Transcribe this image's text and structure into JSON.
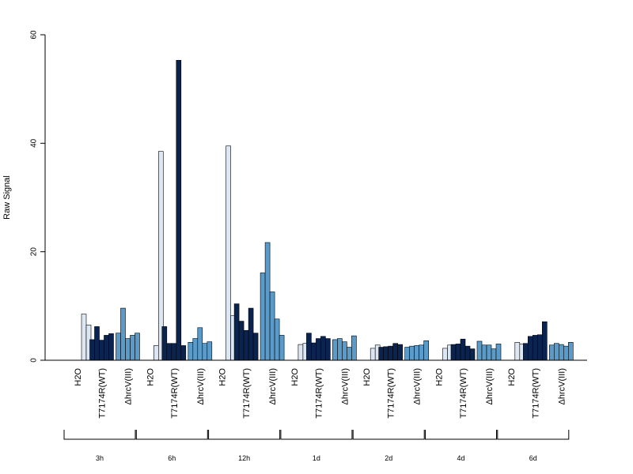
{
  "chart_data": {
    "type": "bar",
    "title": "",
    "xlabel": "",
    "ylabel": "Raw Signal",
    "ylim": [
      0,
      60
    ],
    "yticks": [
      0,
      20,
      40,
      60
    ],
    "grid": false,
    "conditions": [
      "H2O",
      "T7174R(WT)",
      "ΔhrcV(III)"
    ],
    "condition_colors": [
      "#DCE7F3",
      "#0B234F",
      "#5B9BC9"
    ],
    "groups": [
      {
        "time": "3h",
        "series": [
          {
            "condition": "H2O",
            "values": [
              0,
              8.5,
              6.5
            ]
          },
          {
            "condition": "T7174R(WT)",
            "values": [
              3.8,
              6.2,
              3.7,
              4.6,
              4.9
            ]
          },
          {
            "condition": "ΔhrcV(III)",
            "values": [
              5.0,
              9.6,
              4.0,
              4.6,
              5.0
            ]
          }
        ]
      },
      {
        "time": "6h",
        "series": [
          {
            "condition": "H2O",
            "values": [
              0,
              2.7,
              38.5
            ]
          },
          {
            "condition": "T7174R(WT)",
            "values": [
              6.2,
              3.1,
              3.1,
              55.3,
              2.7
            ]
          },
          {
            "condition": "ΔhrcV(III)",
            "values": [
              3.3,
              4.0,
              6.0,
              3.1,
              3.4
            ]
          }
        ]
      },
      {
        "time": "12h",
        "series": [
          {
            "condition": "H2O",
            "values": [
              0,
              39.5,
              8.2
            ]
          },
          {
            "condition": "T7174R(WT)",
            "values": [
              10.4,
              7.2,
              5.5,
              9.6,
              5.0
            ]
          },
          {
            "condition": "ΔhrcV(III)",
            "values": [
              16.1,
              21.7,
              12.6,
              7.6,
              4.6
            ]
          }
        ]
      },
      {
        "time": "1d",
        "series": [
          {
            "condition": "H2O",
            "values": [
              0,
              2.9,
              3.1
            ]
          },
          {
            "condition": "T7174R(WT)",
            "values": [
              5.0,
              3.2,
              4.0,
              4.4,
              4.0
            ]
          },
          {
            "condition": "ΔhrcV(III)",
            "values": [
              3.8,
              4.0,
              3.4,
              2.4,
              4.5
            ]
          }
        ]
      },
      {
        "time": "2d",
        "series": [
          {
            "condition": "H2O",
            "values": [
              0,
              2.2,
              2.8
            ]
          },
          {
            "condition": "T7174R(WT)",
            "values": [
              2.4,
              2.5,
              2.6,
              3.1,
              2.9
            ]
          },
          {
            "condition": "ΔhrcV(III)",
            "values": [
              2.4,
              2.6,
              2.7,
              2.8,
              3.6
            ]
          }
        ]
      },
      {
        "time": "4d",
        "series": [
          {
            "condition": "H2O",
            "values": [
              0,
              2.2,
              2.8
            ]
          },
          {
            "condition": "T7174R(WT)",
            "values": [
              2.9,
              3.0,
              3.9,
              2.6,
              2.1
            ]
          },
          {
            "condition": "ΔhrcV(III)",
            "values": [
              3.5,
              2.8,
              2.8,
              2.1,
              3.0
            ]
          }
        ]
      },
      {
        "time": "6d",
        "series": [
          {
            "condition": "H2O",
            "values": [
              0,
              3.3,
              3.0
            ]
          },
          {
            "condition": "T7174R(WT)",
            "values": [
              3.1,
              4.4,
              4.6,
              4.7,
              7.1
            ]
          },
          {
            "condition": "ΔhrcV(III)",
            "values": [
              2.8,
              3.1,
              2.9,
              2.6,
              3.3
            ]
          }
        ]
      }
    ]
  }
}
